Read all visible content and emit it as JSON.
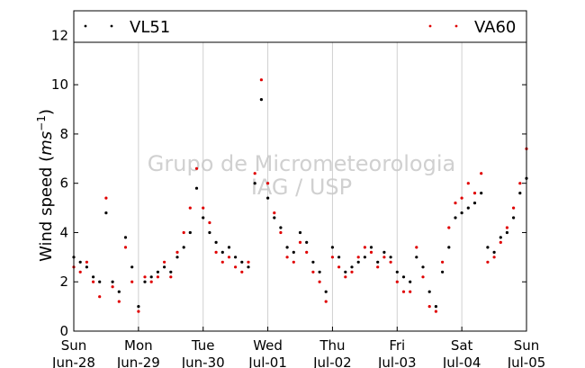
{
  "chart_data": {
    "type": "scatter",
    "title": "",
    "ylabel": "Wind speed (ms⁻¹)",
    "ylabel_main": "Wind speed (",
    "ylabel_unit": "ms",
    "ylabel_exp": "−1",
    "ylabel_close": ")",
    "xlabel": "",
    "ylim": [
      0,
      13
    ],
    "yticks": [
      0,
      2,
      4,
      6,
      8,
      10,
      12
    ],
    "xlim": [
      0,
      7
    ],
    "xticks": [
      {
        "x": 0,
        "day": "Sun",
        "date": "Jun-28"
      },
      {
        "x": 1,
        "day": "Mon",
        "date": "Jun-29"
      },
      {
        "x": 2,
        "day": "Tue",
        "date": "Jun-30"
      },
      {
        "x": 3,
        "day": "Wed",
        "date": "Jul-01"
      },
      {
        "x": 4,
        "day": "Thu",
        "date": "Jul-02"
      },
      {
        "x": 5,
        "day": "Fri",
        "date": "Jul-03"
      },
      {
        "x": 6,
        "day": "Sat",
        "date": "Jul-04"
      },
      {
        "x": 7,
        "day": "Sun",
        "date": "Jul-05"
      }
    ],
    "grid": "vertical",
    "legend_placement": "top",
    "watermark": [
      "Grupo de Micrometeorologia",
      "IAG / USP"
    ],
    "series": [
      {
        "name": "VL51",
        "color": "#000000",
        "x": [
          0.0,
          0.1,
          0.2,
          0.3,
          0.4,
          0.5,
          0.6,
          0.7,
          0.8,
          0.9,
          1.0,
          1.1,
          1.2,
          1.3,
          1.4,
          1.5,
          1.6,
          1.7,
          1.8,
          1.9,
          2.0,
          2.1,
          2.2,
          2.3,
          2.4,
          2.5,
          2.6,
          2.7,
          2.8,
          2.9,
          3.0,
          3.1,
          3.2,
          3.3,
          3.4,
          3.5,
          3.6,
          3.7,
          3.8,
          3.9,
          4.0,
          4.1,
          4.2,
          4.3,
          4.4,
          4.5,
          4.6,
          4.7,
          4.8,
          4.9,
          5.0,
          5.1,
          5.2,
          5.3,
          5.4,
          5.5,
          5.6,
          5.7,
          5.8,
          5.9,
          6.0,
          6.1,
          6.2,
          6.3,
          6.4,
          6.5,
          6.6,
          6.7,
          6.8,
          6.9,
          7.0
        ],
        "y": [
          3.0,
          2.8,
          2.6,
          2.2,
          2.0,
          4.8,
          2.0,
          1.6,
          3.8,
          2.6,
          1.0,
          2.0,
          2.2,
          2.4,
          2.6,
          2.4,
          3.0,
          3.4,
          4.0,
          5.8,
          4.6,
          4.0,
          3.6,
          3.2,
          3.4,
          3.0,
          2.8,
          2.6,
          6.0,
          9.4,
          5.4,
          4.6,
          4.2,
          3.4,
          3.2,
          4.0,
          3.6,
          2.8,
          2.4,
          1.6,
          3.4,
          3.0,
          2.4,
          2.6,
          2.8,
          3.0,
          3.4,
          2.8,
          3.2,
          3.0,
          2.4,
          2.2,
          2.0,
          3.0,
          2.6,
          1.6,
          1.0,
          2.4,
          3.4,
          4.6,
          4.8,
          5.0,
          5.2,
          5.6,
          3.4,
          3.2,
          3.8,
          4.0,
          4.6,
          5.6,
          6.2
        ]
      },
      {
        "name": "VA60",
        "color": "#e00000",
        "x": [
          0.0,
          0.1,
          0.2,
          0.3,
          0.4,
          0.5,
          0.6,
          0.7,
          0.8,
          0.9,
          1.0,
          1.1,
          1.2,
          1.3,
          1.4,
          1.5,
          1.6,
          1.7,
          1.8,
          1.9,
          2.0,
          2.1,
          2.2,
          2.3,
          2.4,
          2.5,
          2.6,
          2.7,
          2.8,
          2.9,
          3.0,
          3.1,
          3.2,
          3.3,
          3.4,
          3.5,
          3.6,
          3.7,
          3.8,
          3.9,
          4.0,
          4.1,
          4.2,
          4.3,
          4.4,
          4.5,
          4.6,
          4.7,
          4.8,
          4.9,
          5.0,
          5.1,
          5.2,
          5.3,
          5.4,
          5.5,
          5.6,
          5.7,
          5.8,
          5.9,
          6.0,
          6.1,
          6.2,
          6.3,
          6.4,
          6.5,
          6.6,
          6.7,
          6.8,
          6.9,
          7.0
        ],
        "y": [
          2.6,
          2.4,
          2.8,
          2.0,
          1.4,
          5.4,
          1.8,
          1.2,
          3.4,
          2.0,
          0.8,
          2.2,
          2.0,
          2.2,
          2.8,
          2.2,
          3.2,
          4.0,
          5.0,
          6.6,
          5.0,
          4.4,
          3.2,
          2.8,
          3.0,
          2.6,
          2.4,
          2.8,
          6.4,
          10.2,
          6.0,
          4.8,
          4.0,
          3.0,
          2.8,
          3.6,
          3.2,
          2.4,
          2.0,
          1.2,
          3.0,
          2.6,
          2.2,
          2.4,
          3.0,
          3.4,
          3.2,
          2.6,
          3.0,
          2.8,
          2.0,
          1.6,
          1.6,
          3.4,
          2.2,
          1.0,
          0.8,
          2.8,
          4.2,
          5.2,
          5.4,
          6.0,
          5.6,
          6.4,
          2.8,
          3.0,
          3.6,
          4.2,
          5.0,
          6.0,
          7.4
        ]
      }
    ]
  }
}
